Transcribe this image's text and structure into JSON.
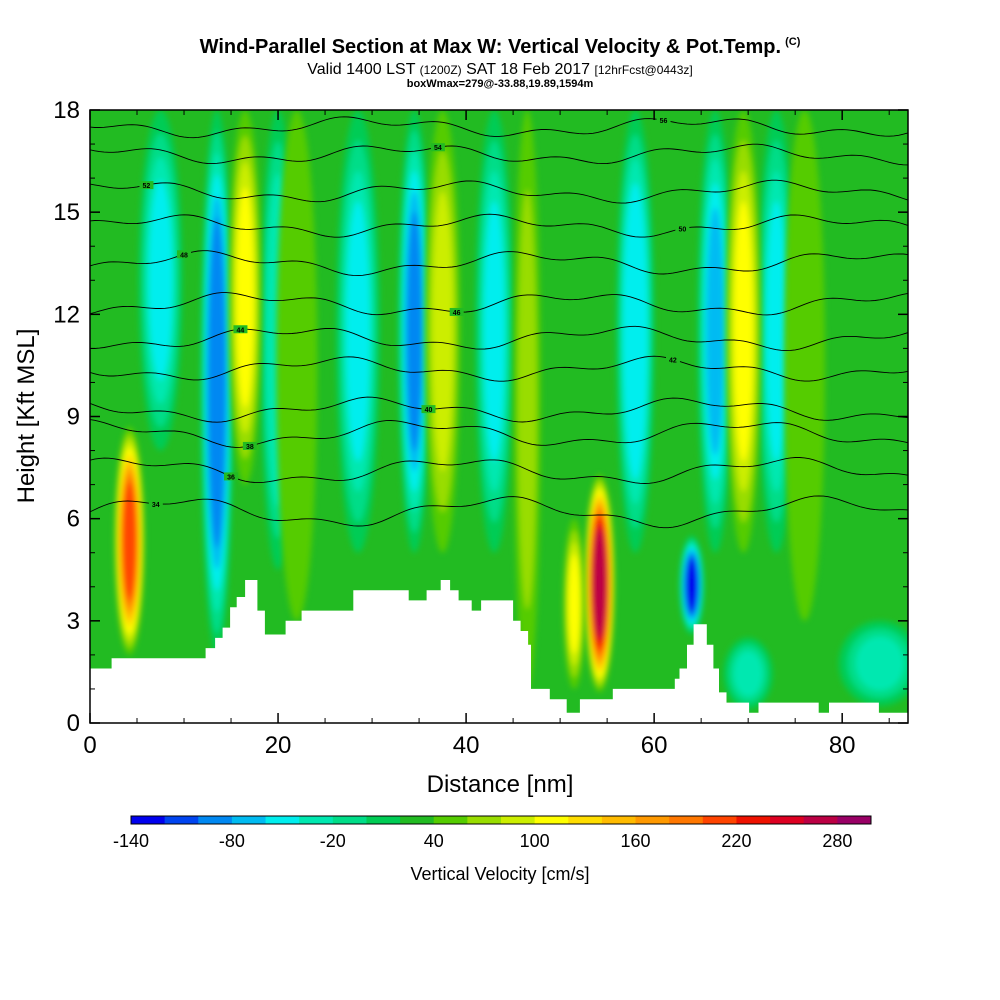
{
  "chart_data": {
    "type": "heatmap",
    "title": "Wind-Parallel Section at Max W: Vertical Velocity & Pot.Temp.",
    "title_mark": "(C)",
    "subtitle_main": "Valid 1400 LST",
    "subtitle_utc": "(1200Z)",
    "subtitle_date": "SAT 18 Feb 2017",
    "subtitle_fcst": "[12hrFcst@0443z]",
    "annotation": "boxWmax=279@-33.88,19.89,1594m",
    "xlabel": "Distance [nm]",
    "ylabel": "Height [Kft MSL]",
    "xlim": [
      0,
      87
    ],
    "ylim": [
      0,
      18
    ],
    "xticks": [
      0,
      20,
      40,
      60,
      80
    ],
    "yticks": [
      0,
      3,
      6,
      9,
      12,
      15,
      18
    ],
    "colorbar_label": "Vertical Velocity [cm/s]",
    "colorbar_ticks": [
      -140,
      -80,
      -20,
      40,
      100,
      160,
      220,
      280
    ],
    "colorbar_range": [
      -140,
      300
    ],
    "colorbar_colors": [
      "#0000ee",
      "#0044f0",
      "#0088f2",
      "#00bbf2",
      "#00eeee",
      "#00e8b0",
      "#00dd88",
      "#00cc55",
      "#22bb22",
      "#55cc00",
      "#99dd00",
      "#ccee00",
      "#ffff00",
      "#ffdd00",
      "#ffbb00",
      "#ff9900",
      "#ff7700",
      "#ff4400",
      "#ee1100",
      "#dd0022",
      "#bb0044",
      "#990066"
    ],
    "background_w": 30,
    "updrafts": [
      {
        "x": 4.2,
        "ybot": 2.0,
        "ytop": 8.7,
        "w": 210,
        "width_nm": 1.1
      },
      {
        "x": 16.5,
        "ybot": 7.0,
        "ytop": 18,
        "w": 100,
        "width_nm": 1.2
      },
      {
        "x": 22.0,
        "ybot": 3.0,
        "ytop": 18,
        "w": 40,
        "width_nm": 1.5
      },
      {
        "x": 37.5,
        "ybot": 5.0,
        "ytop": 18,
        "w": 90,
        "width_nm": 1.3
      },
      {
        "x": 46.5,
        "ybot": 1.0,
        "ytop": 18,
        "w": 70,
        "width_nm": 1.0
      },
      {
        "x": 51.5,
        "ybot": 1.0,
        "ytop": 6.0,
        "w": 110,
        "width_nm": 0.8
      },
      {
        "x": 54.2,
        "ybot": 0.9,
        "ytop": 7.3,
        "w": 279,
        "width_nm": 1.1
      },
      {
        "x": 69.5,
        "ybot": 5.0,
        "ytop": 18,
        "w": 100,
        "width_nm": 1.3
      },
      {
        "x": 76.0,
        "ybot": 3.0,
        "ytop": 18,
        "w": 45,
        "width_nm": 1.5
      }
    ],
    "downdrafts": [
      {
        "x": 7.5,
        "ybot": 8.0,
        "ytop": 18,
        "w": -50,
        "width_nm": 1.6
      },
      {
        "x": 13.5,
        "ybot": 2.0,
        "ytop": 18,
        "w": -100,
        "width_nm": 1.2
      },
      {
        "x": 20.0,
        "ybot": 4.5,
        "ytop": 18,
        "w": -40,
        "width_nm": 1.3
      },
      {
        "x": 28.5,
        "ybot": 5.0,
        "ytop": 18,
        "w": -55,
        "width_nm": 1.6
      },
      {
        "x": 34.5,
        "ybot": 5.0,
        "ytop": 18,
        "w": -90,
        "width_nm": 1.2
      },
      {
        "x": 43.0,
        "ybot": 5.0,
        "ytop": 18,
        "w": -50,
        "width_nm": 1.4
      },
      {
        "x": 58.0,
        "ybot": 5.0,
        "ytop": 18,
        "w": -60,
        "width_nm": 1.4
      },
      {
        "x": 64.0,
        "ybot": 2.6,
        "ytop": 5.5,
        "w": -130,
        "width_nm": 0.9
      },
      {
        "x": 66.5,
        "ybot": 5.0,
        "ytop": 18,
        "w": -70,
        "width_nm": 1.3
      },
      {
        "x": 73.0,
        "ybot": 5.0,
        "ytop": 18,
        "w": -55,
        "width_nm": 1.4
      },
      {
        "x": 70.0,
        "ybot": 0.4,
        "ytop": 2.5,
        "w": -25,
        "width_nm": 1.8
      },
      {
        "x": 84.0,
        "ybot": 0.5,
        "ytop": 3.0,
        "w": -25,
        "width_nm": 3.0
      }
    ],
    "terrain": [
      [
        0,
        1.6
      ],
      [
        2.3,
        1.6
      ],
      [
        2.3,
        1.9
      ],
      [
        12.3,
        1.9
      ],
      [
        12.3,
        2.2
      ],
      [
        13.3,
        2.2
      ],
      [
        13.3,
        2.5
      ],
      [
        14.1,
        2.5
      ],
      [
        14.1,
        2.8
      ],
      [
        14.9,
        2.8
      ],
      [
        14.9,
        3.4
      ],
      [
        15.6,
        3.4
      ],
      [
        15.6,
        3.7
      ],
      [
        16.5,
        3.7
      ],
      [
        16.5,
        4.2
      ],
      [
        17.8,
        4.2
      ],
      [
        17.8,
        3.3
      ],
      [
        18.6,
        3.3
      ],
      [
        18.6,
        2.6
      ],
      [
        20.8,
        2.6
      ],
      [
        20.8,
        3.0
      ],
      [
        22.5,
        3.0
      ],
      [
        22.5,
        3.3
      ],
      [
        28.0,
        3.3
      ],
      [
        28.0,
        3.9
      ],
      [
        33.9,
        3.9
      ],
      [
        33.9,
        3.6
      ],
      [
        35.8,
        3.6
      ],
      [
        35.8,
        3.9
      ],
      [
        37.3,
        3.9
      ],
      [
        37.3,
        4.2
      ],
      [
        38.3,
        4.2
      ],
      [
        38.3,
        3.9
      ],
      [
        39.2,
        3.9
      ],
      [
        39.2,
        3.6
      ],
      [
        40.6,
        3.6
      ],
      [
        40.6,
        3.3
      ],
      [
        41.6,
        3.3
      ],
      [
        41.6,
        3.6
      ],
      [
        45.0,
        3.6
      ],
      [
        45.0,
        3.0
      ],
      [
        45.8,
        3.0
      ],
      [
        45.8,
        2.7
      ],
      [
        46.6,
        2.7
      ],
      [
        46.6,
        2.3
      ],
      [
        46.9,
        2.3
      ],
      [
        46.9,
        1.0
      ],
      [
        48.9,
        1.0
      ],
      [
        48.9,
        0.7
      ],
      [
        50.7,
        0.7
      ],
      [
        50.7,
        0.3
      ],
      [
        52.1,
        0.3
      ],
      [
        52.1,
        0.7
      ],
      [
        55.6,
        0.7
      ],
      [
        55.6,
        1.0
      ],
      [
        62.2,
        1.0
      ],
      [
        62.2,
        1.3
      ],
      [
        62.7,
        1.3
      ],
      [
        62.7,
        1.6
      ],
      [
        63.5,
        1.6
      ],
      [
        63.5,
        2.3
      ],
      [
        64.2,
        2.3
      ],
      [
        64.2,
        2.9
      ],
      [
        65.6,
        2.9
      ],
      [
        65.6,
        2.3
      ],
      [
        66.3,
        2.3
      ],
      [
        66.3,
        1.6
      ],
      [
        66.9,
        1.6
      ],
      [
        66.9,
        0.9
      ],
      [
        67.7,
        0.9
      ],
      [
        67.7,
        0.6
      ],
      [
        70.1,
        0.6
      ],
      [
        70.1,
        0.3
      ],
      [
        71.1,
        0.3
      ],
      [
        71.1,
        0.6
      ],
      [
        77.5,
        0.6
      ],
      [
        77.5,
        0.3
      ],
      [
        78.6,
        0.3
      ],
      [
        78.6,
        0.6
      ],
      [
        83.9,
        0.6
      ],
      [
        83.9,
        0.3
      ],
      [
        87,
        0.3
      ]
    ],
    "theta_contours": [
      {
        "label": "34",
        "base": 6.2,
        "amp": 0.35,
        "lx": 7
      },
      {
        "label": "36",
        "base": 7.4,
        "amp": 0.3,
        "lx": 15
      },
      {
        "label": "38",
        "base": 8.5,
        "amp": 0.3,
        "lx": 17
      },
      {
        "label": "40",
        "base": 9.2,
        "amp": 0.25,
        "lx": 36
      },
      {
        "label": "42",
        "base": 10.4,
        "amp": 0.25,
        "lx": 62
      },
      {
        "label": "44",
        "base": 11.3,
        "amp": 0.25,
        "lx": 16
      },
      {
        "label": "46",
        "base": 12.3,
        "amp": 0.25,
        "lx": 39
      },
      {
        "label": "48",
        "base": 13.5,
        "amp": 0.25,
        "lx": 10
      },
      {
        "label": "50",
        "base": 14.6,
        "amp": 0.22,
        "lx": 63
      },
      {
        "label": "52",
        "base": 15.6,
        "amp": 0.22,
        "lx": 6
      },
      {
        "label": "54",
        "base": 16.7,
        "amp": 0.2,
        "lx": 37
      },
      {
        "label": "56",
        "base": 17.5,
        "amp": 0.2,
        "lx": 61
      }
    ]
  },
  "theme": {
    "frame_color": "#000000",
    "contour_color": "#000000",
    "terrain_color": "#ffffff"
  }
}
